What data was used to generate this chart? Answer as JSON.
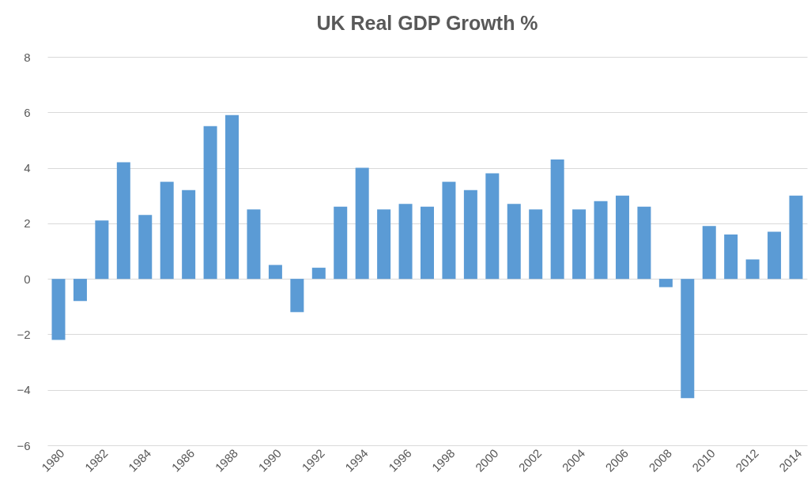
{
  "chart_data": {
    "type": "bar",
    "title": "UK Real GDP Growth %",
    "categories": [
      "1980",
      null,
      "1982",
      null,
      "1984",
      null,
      "1986",
      null,
      "1988",
      null,
      "1990",
      null,
      "1992",
      null,
      "1994",
      null,
      "1996",
      null,
      "1998",
      null,
      "2000",
      null,
      "2002",
      null,
      "2004",
      null,
      "2006",
      null,
      "2008",
      null,
      "2010",
      null,
      "2012",
      null,
      "2014"
    ],
    "values": [
      -2.2,
      -0.8,
      2.1,
      4.2,
      2.3,
      3.5,
      3.2,
      5.5,
      5.9,
      2.5,
      0.5,
      -1.2,
      0.4,
      2.6,
      4.0,
      2.5,
      2.7,
      2.6,
      3.5,
      3.2,
      3.8,
      2.7,
      2.5,
      4.3,
      2.5,
      2.8,
      3.0,
      2.6,
      -0.3,
      -4.3,
      1.9,
      1.6,
      0.7,
      1.7,
      3.0
    ],
    "color": "#5b9bd5",
    "ylim": [
      -6,
      8
    ],
    "yticks": [
      -6,
      -4,
      -2,
      0,
      2,
      4,
      6,
      8
    ],
    "grid": "y"
  }
}
